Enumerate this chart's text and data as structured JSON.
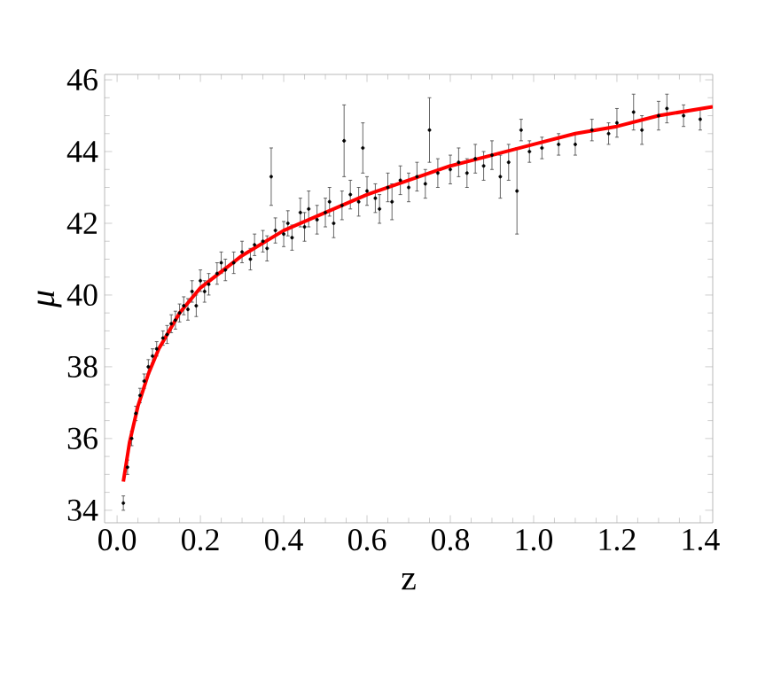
{
  "chart_data": {
    "type": "scatter",
    "xlabel": "z",
    "ylabel": "μ",
    "xlim": [
      -0.03,
      1.43
    ],
    "ylim": [
      33.65,
      46.15
    ],
    "xticks": [
      {
        "value": 0,
        "label": "0.0"
      },
      0.2,
      0.4,
      0.6,
      0.8,
      {
        "value": 1,
        "label": "1.0"
      },
      1.2,
      1.4
    ],
    "yticks": [
      34,
      36,
      38,
      40,
      42,
      44,
      46
    ],
    "grid": false,
    "legend": false,
    "series": [
      {
        "color": "#000000",
        "marker": "circle",
        "x": [
          0.015,
          0.025,
          0.035,
          0.045,
          0.055,
          0.065,
          0.075,
          0.085,
          0.095,
          0.11,
          0.12,
          0.13,
          0.14,
          0.15,
          0.16,
          0.17,
          0.18,
          0.19,
          0.2,
          0.21,
          0.22,
          0.24,
          0.25,
          0.26,
          0.28,
          0.3,
          0.32,
          0.33,
          0.35,
          0.36,
          0.37,
          0.38,
          0.4,
          0.41,
          0.42,
          0.44,
          0.45,
          0.46,
          0.48,
          0.5,
          0.51,
          0.52,
          0.54,
          0.545,
          0.56,
          0.58,
          0.59,
          0.6,
          0.62,
          0.63,
          0.65,
          0.66,
          0.68,
          0.7,
          0.72,
          0.74,
          0.75,
          0.77,
          0.8,
          0.82,
          0.84,
          0.86,
          0.88,
          0.9,
          0.92,
          0.94,
          0.96,
          0.97,
          0.99,
          1.02,
          1.06,
          1.1,
          1.14,
          1.18,
          1.2,
          1.24,
          1.26,
          1.3,
          1.32,
          1.36,
          1.4
        ],
        "values": [
          34.2,
          35.2,
          36.0,
          36.7,
          37.2,
          37.6,
          38.0,
          38.3,
          38.5,
          38.8,
          38.9,
          39.2,
          39.3,
          39.5,
          39.7,
          39.6,
          40.1,
          39.7,
          40.4,
          40.1,
          40.3,
          40.6,
          40.9,
          40.7,
          40.9,
          41.2,
          41.0,
          41.4,
          41.5,
          41.3,
          43.3,
          41.8,
          41.7,
          42.0,
          41.6,
          42.3,
          41.9,
          42.4,
          42.1,
          42.3,
          42.6,
          42.0,
          42.5,
          44.3,
          42.8,
          42.6,
          44.1,
          42.9,
          42.7,
          42.4,
          43.0,
          42.6,
          43.2,
          43.0,
          43.3,
          43.1,
          44.6,
          43.4,
          43.5,
          43.7,
          43.4,
          43.8,
          43.6,
          43.9,
          43.3,
          43.7,
          42.9,
          44.6,
          44.0,
          44.1,
          44.2,
          44.2,
          44.6,
          44.5,
          44.8,
          45.1,
          44.6,
          45.0,
          45.2,
          45.0,
          44.9
        ],
        "errors": [
          0.2,
          0.2,
          0.2,
          0.2,
          0.2,
          0.2,
          0.2,
          0.2,
          0.2,
          0.2,
          0.25,
          0.25,
          0.25,
          0.25,
          0.25,
          0.3,
          0.3,
          0.3,
          0.3,
          0.3,
          0.3,
          0.3,
          0.3,
          0.3,
          0.3,
          0.3,
          0.3,
          0.3,
          0.3,
          0.35,
          0.8,
          0.35,
          0.35,
          0.35,
          0.35,
          0.4,
          0.4,
          0.5,
          0.4,
          0.4,
          0.4,
          0.4,
          0.4,
          1.0,
          0.4,
          0.4,
          0.7,
          0.4,
          0.4,
          0.4,
          0.4,
          0.5,
          0.4,
          0.4,
          0.4,
          0.4,
          0.9,
          0.4,
          0.4,
          0.4,
          0.4,
          0.4,
          0.4,
          0.4,
          0.6,
          0.5,
          1.2,
          0.3,
          0.3,
          0.3,
          0.3,
          0.3,
          0.3,
          0.3,
          0.4,
          0.5,
          0.4,
          0.4,
          0.4,
          0.3,
          0.3
        ]
      },
      {
        "type": "line",
        "color": "#ff0000",
        "marker": "none",
        "line_style": "solid",
        "x": [
          0.015,
          0.03,
          0.05,
          0.075,
          0.1,
          0.15,
          0.2,
          0.3,
          0.4,
          0.5,
          0.6,
          0.7,
          0.8,
          0.9,
          1.0,
          1.1,
          1.2,
          1.3,
          1.43
        ],
        "values": [
          34.8,
          35.9,
          36.9,
          37.8,
          38.5,
          39.5,
          40.2,
          41.1,
          41.8,
          42.3,
          42.8,
          43.2,
          43.6,
          43.9,
          44.2,
          44.5,
          44.7,
          45.0,
          45.25
        ]
      }
    ]
  }
}
